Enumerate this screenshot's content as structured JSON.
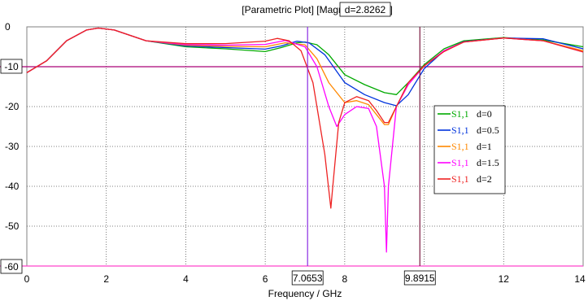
{
  "chart_data": {
    "type": "line",
    "title": "[Parametric Plot] [Magnitude in dB]",
    "xlabel": "Frequency / GHz",
    "ylabel": "",
    "xlim": [
      0,
      14
    ],
    "ylim": [
      -60,
      0
    ],
    "x_ticks": [
      "0",
      "2",
      "4",
      "6",
      "8",
      "10",
      "12",
      "14"
    ],
    "y_ticks": [
      "0",
      "-10",
      "-20",
      "-30",
      "-40",
      "-50",
      "-60"
    ],
    "grid": true,
    "legend_position": "right",
    "hline_value": -10,
    "hline_label": "-10",
    "bottom_label": "-60",
    "markers": [
      {
        "x": 7.0653,
        "label": "7.0653"
      },
      {
        "x": 9.8915,
        "label": "9.8915"
      }
    ],
    "param_label": "d=2.8262",
    "series": [
      {
        "name": "d=0",
        "legend_prefix": "S1,1",
        "color": "#00aa00",
        "x": [
          0,
          0.5,
          1,
          1.5,
          1.8,
          2.2,
          3,
          4,
          5,
          6,
          6.4,
          6.8,
          7,
          7.3,
          7.6,
          8,
          8.5,
          9,
          9.3,
          9.6,
          10,
          10.5,
          11,
          12,
          13,
          14
        ],
        "y": [
          -11.5,
          -8.5,
          -3.5,
          -0.8,
          -0.3,
          -0.8,
          -3.5,
          -5,
          -5.5,
          -6.2,
          -5.2,
          -4,
          -3.8,
          -4.5,
          -7,
          -12,
          -14.5,
          -16.5,
          -17,
          -14,
          -9.5,
          -5.5,
          -3.5,
          -2.7,
          -3.3,
          -5
        ]
      },
      {
        "name": "d=0.5",
        "legend_prefix": "S1,1",
        "color": "#0033dd",
        "x": [
          0,
          0.5,
          1,
          1.5,
          1.8,
          2.2,
          3,
          4,
          5,
          6,
          6.4,
          6.8,
          7.1,
          7.5,
          8,
          8.5,
          9,
          9.3,
          9.6,
          10,
          10.5,
          11,
          12,
          13,
          14
        ],
        "y": [
          -11.5,
          -8.5,
          -3.5,
          -0.8,
          -0.3,
          -0.8,
          -3.5,
          -4.8,
          -5.2,
          -5.6,
          -4.8,
          -3.6,
          -4,
          -7,
          -14,
          -17,
          -19,
          -19.8,
          -17,
          -10.5,
          -6,
          -3.7,
          -2.8,
          -3,
          -5.5
        ]
      },
      {
        "name": "d=1",
        "legend_prefix": "S1,1",
        "color": "#ff8800",
        "x": [
          0,
          0.5,
          1,
          1.5,
          1.8,
          2.2,
          3,
          4,
          5,
          6,
          6.5,
          7,
          7.3,
          7.6,
          8,
          8.3,
          8.6,
          8.8,
          9,
          9.1,
          9.3,
          9.6,
          10,
          10.5,
          11,
          12,
          13,
          14
        ],
        "y": [
          -11.5,
          -8.5,
          -3.5,
          -0.8,
          -0.3,
          -0.8,
          -3.5,
          -4.6,
          -4.9,
          -5,
          -4,
          -4.5,
          -8,
          -14,
          -19,
          -18.5,
          -19.5,
          -22,
          -24.5,
          -24.5,
          -20,
          -14.5,
          -9.8,
          -6,
          -3.8,
          -2.8,
          -3.5,
          -6
        ]
      },
      {
        "name": "d=1.5",
        "legend_prefix": "S1,1",
        "color": "#ff00ff",
        "x": [
          0,
          0.5,
          1,
          1.5,
          1.8,
          2.2,
          3,
          4,
          5,
          6,
          6.5,
          7,
          7.3,
          7.6,
          7.8,
          8,
          8.3,
          8.6,
          8.8,
          9,
          9.05,
          9.1,
          9.3,
          9.6,
          10,
          10.5,
          11,
          12,
          13,
          14
        ],
        "y": [
          -11.5,
          -8.5,
          -3.5,
          -0.8,
          -0.3,
          -0.8,
          -3.5,
          -4.4,
          -4.6,
          -4.4,
          -3.4,
          -5,
          -10,
          -20,
          -25,
          -22,
          -20,
          -20.5,
          -25,
          -40,
          -56.5,
          -40,
          -20,
          -14.5,
          -9.8,
          -6,
          -3.8,
          -2.8,
          -3.5,
          -6.3
        ]
      },
      {
        "name": "d=2",
        "legend_prefix": "S1,1",
        "color": "#ee2222",
        "x": [
          0,
          0.5,
          1,
          1.5,
          1.8,
          2.2,
          3,
          4,
          5,
          6,
          6.3,
          6.6,
          6.9,
          7.2,
          7.5,
          7.65,
          7.7,
          7.85,
          8,
          8.3,
          8.6,
          8.8,
          9,
          9.1,
          9.3,
          9.6,
          10,
          10.5,
          11,
          12,
          13,
          14
        ],
        "y": [
          -11.5,
          -8.5,
          -3.5,
          -0.8,
          -0.3,
          -0.8,
          -3.5,
          -4.2,
          -4.2,
          -3.6,
          -2.9,
          -3.5,
          -6,
          -14,
          -32,
          -45.5,
          -40,
          -24,
          -19,
          -17.5,
          -18.5,
          -21,
          -24,
          -24,
          -20,
          -14,
          -9.8,
          -6.2,
          -3.8,
          -2.8,
          -3.5,
          -6.3
        ]
      }
    ]
  }
}
